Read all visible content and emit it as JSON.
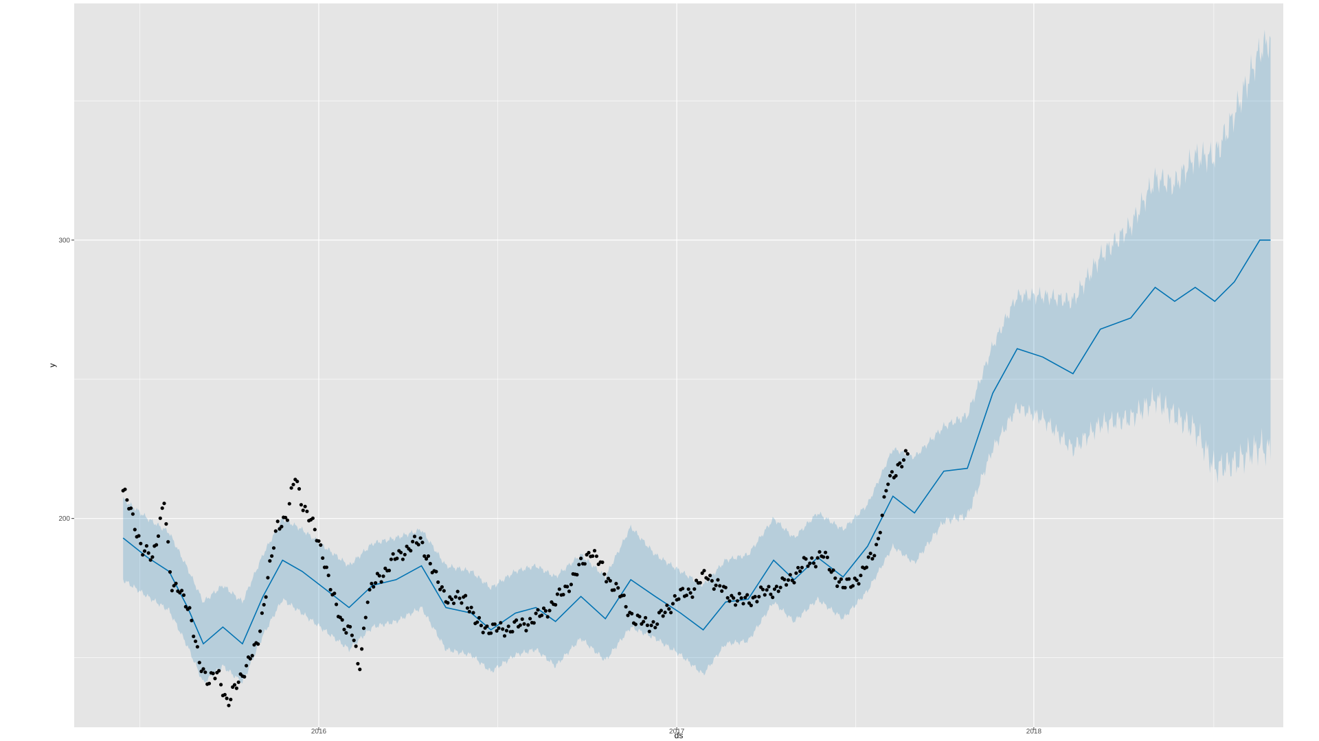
{
  "chart_data": {
    "type": "line",
    "title": "",
    "xlabel": "ds",
    "ylabel": "y",
    "x_ticks": [
      "2016",
      "2017",
      "2018"
    ],
    "y_ticks": [
      "200",
      "300"
    ],
    "xlim": [
      "2015-04-26",
      "2018-09-13"
    ],
    "ylim": [
      125,
      385
    ],
    "grid": true,
    "colors": {
      "panel_background": "#e5e5e5",
      "grid": "#ffffff",
      "forecast_line": "#0072b2",
      "uncertainty_band": "#0072b2",
      "observations": "#000000"
    },
    "series": [
      {
        "name": "yhat",
        "points": [
          [
            "2015-06-15",
            193
          ],
          [
            "2015-07-10",
            186
          ],
          [
            "2015-08-01",
            181
          ],
          [
            "2015-08-20",
            168
          ],
          [
            "2015-09-05",
            155
          ],
          [
            "2015-09-25",
            161
          ],
          [
            "2015-10-15",
            155
          ],
          [
            "2015-11-05",
            172
          ],
          [
            "2015-11-25",
            185
          ],
          [
            "2015-12-15",
            181
          ],
          [
            "2016-01-10",
            174
          ],
          [
            "2016-02-01",
            168
          ],
          [
            "2016-02-25",
            176
          ],
          [
            "2016-03-20",
            178
          ],
          [
            "2016-04-15",
            183
          ],
          [
            "2016-05-10",
            168
          ],
          [
            "2016-06-05",
            166
          ],
          [
            "2016-06-25",
            160
          ],
          [
            "2016-07-20",
            166
          ],
          [
            "2016-08-10",
            168
          ],
          [
            "2016-08-30",
            163
          ],
          [
            "2016-09-25",
            172
          ],
          [
            "2016-10-20",
            164
          ],
          [
            "2016-11-15",
            178
          ],
          [
            "2016-12-10",
            172
          ],
          [
            "2017-01-05",
            166
          ],
          [
            "2017-01-28",
            160
          ],
          [
            "2017-02-20",
            170
          ],
          [
            "2017-03-15",
            171
          ],
          [
            "2017-04-10",
            185
          ],
          [
            "2017-05-01",
            178
          ],
          [
            "2017-05-25",
            186
          ],
          [
            "2017-06-20",
            179
          ],
          [
            "2017-07-15",
            190
          ],
          [
            "2017-08-10",
            208
          ],
          [
            "2017-09-01",
            202
          ],
          [
            "2017-10-01",
            217
          ],
          [
            "2017-10-25",
            218
          ],
          [
            "2017-11-20",
            245
          ],
          [
            "2017-12-15",
            261
          ],
          [
            "2018-01-10",
            258
          ],
          [
            "2018-02-10",
            252
          ],
          [
            "2018-03-10",
            268
          ],
          [
            "2018-04-10",
            272
          ],
          [
            "2018-05-05",
            283
          ],
          [
            "2018-05-25",
            278
          ],
          [
            "2018-06-15",
            283
          ],
          [
            "2018-07-05",
            278
          ],
          [
            "2018-07-25",
            285
          ],
          [
            "2018-08-20",
            300
          ],
          [
            "2018-08-31",
            300
          ]
        ]
      },
      {
        "name": "yhat_upper",
        "points": [
          [
            "2015-06-15",
            207
          ],
          [
            "2015-07-10",
            200
          ],
          [
            "2015-08-01",
            195
          ],
          [
            "2015-08-20",
            182
          ],
          [
            "2015-09-05",
            170
          ],
          [
            "2015-09-25",
            176
          ],
          [
            "2015-10-15",
            170
          ],
          [
            "2015-11-05",
            187
          ],
          [
            "2015-11-25",
            200
          ],
          [
            "2015-12-15",
            196
          ],
          [
            "2016-01-10",
            189
          ],
          [
            "2016-02-01",
            183
          ],
          [
            "2016-02-25",
            191
          ],
          [
            "2016-03-20",
            193
          ],
          [
            "2016-04-15",
            196
          ],
          [
            "2016-05-10",
            183
          ],
          [
            "2016-06-05",
            181
          ],
          [
            "2016-06-25",
            175
          ],
          [
            "2016-07-20",
            181
          ],
          [
            "2016-08-10",
            183
          ],
          [
            "2016-08-30",
            179
          ],
          [
            "2016-09-25",
            187
          ],
          [
            "2016-10-20",
            179
          ],
          [
            "2016-11-15",
            197
          ],
          [
            "2016-12-10",
            187
          ],
          [
            "2017-01-05",
            181
          ],
          [
            "2017-01-28",
            176
          ],
          [
            "2017-02-20",
            185
          ],
          [
            "2017-03-15",
            187
          ],
          [
            "2017-04-10",
            200
          ],
          [
            "2017-05-01",
            193
          ],
          [
            "2017-05-25",
            202
          ],
          [
            "2017-06-20",
            196
          ],
          [
            "2017-07-15",
            205
          ],
          [
            "2017-08-10",
            225
          ],
          [
            "2017-09-01",
            222
          ],
          [
            "2017-10-01",
            233
          ],
          [
            "2017-10-25",
            237
          ],
          [
            "2017-11-20",
            262
          ],
          [
            "2017-12-15",
            280
          ],
          [
            "2018-01-10",
            280
          ],
          [
            "2018-02-10",
            278
          ],
          [
            "2018-03-10",
            294
          ],
          [
            "2018-04-10",
            305
          ],
          [
            "2018-05-05",
            322
          ],
          [
            "2018-05-25",
            320
          ],
          [
            "2018-06-15",
            330
          ],
          [
            "2018-07-05",
            330
          ],
          [
            "2018-07-25",
            345
          ],
          [
            "2018-08-20",
            368
          ],
          [
            "2018-08-31",
            372
          ]
        ]
      },
      {
        "name": "yhat_lower",
        "points": [
          [
            "2015-06-15",
            178
          ],
          [
            "2015-07-10",
            172
          ],
          [
            "2015-08-01",
            167
          ],
          [
            "2015-08-20",
            154
          ],
          [
            "2015-09-05",
            141
          ],
          [
            "2015-09-25",
            147
          ],
          [
            "2015-10-15",
            141
          ],
          [
            "2015-11-05",
            158
          ],
          [
            "2015-11-25",
            171
          ],
          [
            "2015-12-15",
            166
          ],
          [
            "2016-01-10",
            159
          ],
          [
            "2016-02-01",
            153
          ],
          [
            "2016-02-25",
            161
          ],
          [
            "2016-03-20",
            163
          ],
          [
            "2016-04-15",
            168
          ],
          [
            "2016-05-10",
            153
          ],
          [
            "2016-06-05",
            151
          ],
          [
            "2016-06-25",
            145
          ],
          [
            "2016-07-20",
            151
          ],
          [
            "2016-08-10",
            153
          ],
          [
            "2016-08-30",
            147
          ],
          [
            "2016-09-25",
            157
          ],
          [
            "2016-10-20",
            149
          ],
          [
            "2016-11-15",
            161
          ],
          [
            "2016-12-10",
            157
          ],
          [
            "2017-01-05",
            151
          ],
          [
            "2017-01-28",
            144
          ],
          [
            "2017-02-20",
            155
          ],
          [
            "2017-03-15",
            156
          ],
          [
            "2017-04-10",
            170
          ],
          [
            "2017-05-01",
            163
          ],
          [
            "2017-05-25",
            171
          ],
          [
            "2017-06-20",
            164
          ],
          [
            "2017-07-15",
            174
          ],
          [
            "2017-08-10",
            190
          ],
          [
            "2017-09-01",
            184
          ],
          [
            "2017-10-01",
            199
          ],
          [
            "2017-10-25",
            201
          ],
          [
            "2017-11-20",
            225
          ],
          [
            "2017-12-15",
            240
          ],
          [
            "2018-01-10",
            236
          ],
          [
            "2018-02-10",
            225
          ],
          [
            "2018-03-10",
            234
          ],
          [
            "2018-04-10",
            236
          ],
          [
            "2018-05-05",
            243
          ],
          [
            "2018-05-25",
            237
          ],
          [
            "2018-06-15",
            232
          ],
          [
            "2018-07-05",
            218
          ],
          [
            "2018-07-25",
            220
          ],
          [
            "2018-08-20",
            226
          ],
          [
            "2018-08-31",
            224
          ]
        ]
      },
      {
        "name": "y",
        "points": [
          [
            "2015-06-15",
            210
          ],
          [
            "2015-06-25",
            200
          ],
          [
            "2015-07-05",
            189
          ],
          [
            "2015-07-15",
            185
          ],
          [
            "2015-07-22",
            198
          ],
          [
            "2015-07-27",
            207
          ],
          [
            "2015-08-03",
            175
          ],
          [
            "2015-08-12",
            176
          ],
          [
            "2015-08-22",
            165
          ],
          [
            "2015-09-01",
            150
          ],
          [
            "2015-09-10",
            140
          ],
          [
            "2015-09-20",
            146
          ],
          [
            "2015-09-30",
            132
          ],
          [
            "2015-10-10",
            142
          ],
          [
            "2015-10-20",
            147
          ],
          [
            "2015-10-30",
            155
          ],
          [
            "2015-11-10",
            178
          ],
          [
            "2015-11-20",
            198
          ],
          [
            "2015-11-30",
            201
          ],
          [
            "2015-12-08",
            215
          ],
          [
            "2015-12-15",
            206
          ],
          [
            "2015-12-25",
            198
          ],
          [
            "2016-01-05",
            188
          ],
          [
            "2016-01-15",
            172
          ],
          [
            "2016-01-25",
            163
          ],
          [
            "2016-02-05",
            158
          ],
          [
            "2016-02-11",
            145
          ],
          [
            "2016-02-20",
            172
          ],
          [
            "2016-03-01",
            178
          ],
          [
            "2016-03-15",
            184
          ],
          [
            "2016-03-30",
            189
          ],
          [
            "2016-04-15",
            192
          ],
          [
            "2016-04-30",
            178
          ],
          [
            "2016-05-15",
            170
          ],
          [
            "2016-05-30",
            172
          ],
          [
            "2016-06-10",
            162
          ],
          [
            "2016-06-30",
            160
          ],
          [
            "2016-07-20",
            161
          ],
          [
            "2016-08-10",
            164
          ],
          [
            "2016-08-30",
            170
          ],
          [
            "2016-09-20",
            180
          ],
          [
            "2016-10-05",
            189
          ],
          [
            "2016-10-20",
            180
          ],
          [
            "2016-11-05",
            172
          ],
          [
            "2016-11-20",
            163
          ],
          [
            "2016-12-10",
            162
          ],
          [
            "2016-12-30",
            171
          ],
          [
            "2017-01-15",
            174
          ],
          [
            "2017-02-01",
            180
          ],
          [
            "2017-02-20",
            173
          ],
          [
            "2017-03-10",
            170
          ],
          [
            "2017-03-30",
            173
          ],
          [
            "2017-04-20",
            176
          ],
          [
            "2017-05-10",
            183
          ],
          [
            "2017-05-30",
            187
          ],
          [
            "2017-06-20",
            175
          ],
          [
            "2017-07-10",
            180
          ],
          [
            "2017-07-25",
            191
          ],
          [
            "2017-08-05",
            213
          ],
          [
            "2017-08-15",
            219
          ],
          [
            "2017-08-25",
            222
          ]
        ]
      }
    ]
  }
}
